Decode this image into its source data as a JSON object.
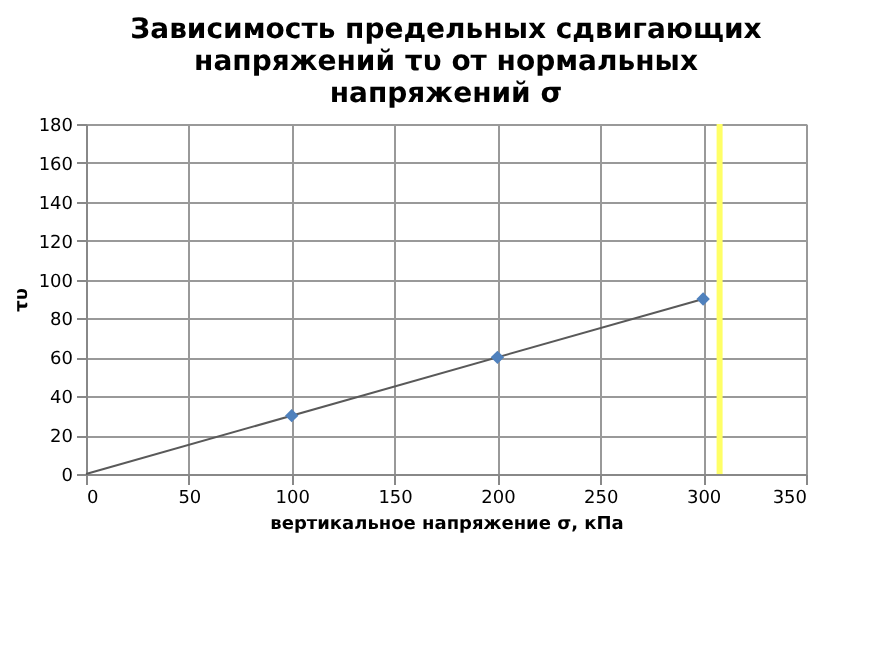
{
  "chart_data": {
    "type": "scatter",
    "title": "Зависимость предельных сдвигающих напряжений τυ от нормальных напряжений σ",
    "xlabel": "вертикальное напряжение σ, кПа",
    "ylabel": "τυ",
    "series": [
      {
        "type": "line",
        "color": "#595959",
        "x": [
          0,
          300
        ],
        "values": [
          0,
          90
        ],
        "marker": "none",
        "line_style": "solid"
      },
      {
        "color": "#4f81bd",
        "x": [
          100,
          200,
          300
        ],
        "values": [
          30,
          60,
          90
        ],
        "marker": "diamond"
      }
    ],
    "xlim": [
      0,
      350
    ],
    "xticks": [
      0,
      50,
      100,
      150,
      200,
      250,
      300,
      350
    ],
    "ylim": [
      0,
      180
    ],
    "yticks": [
      0,
      20,
      40,
      60,
      80,
      100,
      120,
      140,
      160,
      180
    ],
    "grid": true,
    "ref_lines": [
      {
        "axis": "x",
        "value": 308,
        "color": "#ffff66"
      }
    ]
  }
}
